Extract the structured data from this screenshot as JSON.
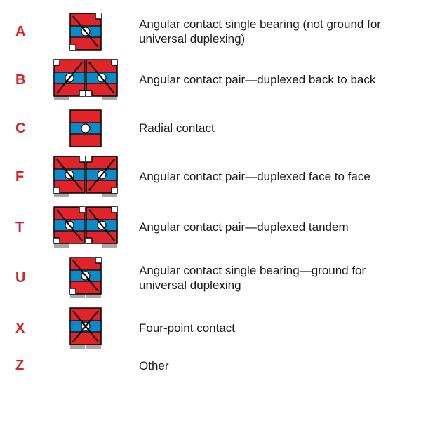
{
  "colors": {
    "code": "#d2232a",
    "desc": "#1a1a1a",
    "bearing_red": "#e1242a",
    "bearing_blue": "#0a8bc8",
    "bearing_black": "#000000",
    "bearing_white": "#ffffff",
    "base_gray": "#a8a8a8"
  },
  "typography": {
    "code_fontsize": 20,
    "code_fontweight": 700,
    "desc_fontsize": 17
  },
  "rows": [
    {
      "code": "A",
      "icon": "single",
      "desc": "Angular contact single bearing (not ground for universal duplexing)"
    },
    {
      "code": "B",
      "icon": "pair_back",
      "desc": "Angular contact pair—duplexed back to back"
    },
    {
      "code": "C",
      "icon": "radial",
      "desc": "Radial contact"
    },
    {
      "code": "F",
      "icon": "pair_face",
      "desc": "Angular contact pair—duplexed face to face"
    },
    {
      "code": "T",
      "icon": "pair_tandem",
      "desc": "Angular contact pair—duplexed tandem"
    },
    {
      "code": "U",
      "icon": "single_ground",
      "desc": "Angular contact single bearing—ground for universal duplexing"
    },
    {
      "code": "X",
      "icon": "fourpoint",
      "desc": "Four-point contact"
    },
    {
      "code": "Z",
      "icon": "none",
      "desc": "Other"
    }
  ],
  "icon_geometry": {
    "unit_w": 44,
    "unit_h": 52,
    "base_h": 6,
    "ball_r": 6
  }
}
